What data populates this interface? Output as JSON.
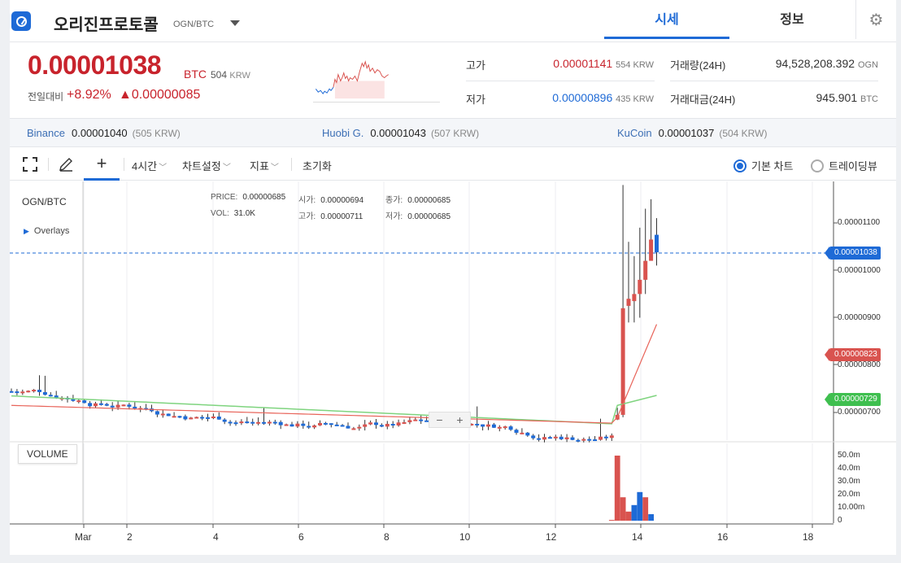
{
  "header": {
    "coin_name": "오리진프로토콜",
    "pair": "OGN/BTC",
    "tabs": [
      {
        "label": "시세"
      },
      {
        "label": "정보"
      }
    ]
  },
  "price": {
    "current": "0.00001038",
    "unit": "BTC",
    "krw": "504",
    "krw_unit": "KRW",
    "change_label": "전일대비",
    "change_pct": "+8.92%",
    "change_abs": "▲0.00000085"
  },
  "stats": {
    "high_label": "고가",
    "high_value": "0.00001141",
    "high_krw": "554 KRW",
    "low_label": "저가",
    "low_value": "0.00000896",
    "low_krw": "435 KRW",
    "volume_label": "거래량(24H)",
    "volume_value": "94,528,208.392",
    "volume_unit": "OGN",
    "amount_label": "거래대금(24H)",
    "amount_value": "945.901",
    "amount_unit": "BTC"
  },
  "exchanges": [
    {
      "name": "Binance",
      "price": "0.00001040",
      "krw": "(505 KRW)"
    },
    {
      "name": "Huobi G.",
      "price": "0.00001043",
      "krw": "(507 KRW)"
    },
    {
      "name": "KuCoin",
      "price": "0.00001037",
      "krw": "(504 KRW)"
    }
  ],
  "toolbar": {
    "interval": "4시간",
    "chart_settings": "차트설정",
    "indicators": "지표",
    "reset": "초기화",
    "basic_chart": "기본 차트",
    "tradingview": "트레이딩뷰"
  },
  "chart": {
    "pair": "OGN/BTC",
    "overlays": "Overlays",
    "ohlc": {
      "price_label": "PRICE:",
      "price": "0.00000685",
      "open_label": "시가:",
      "open": "0.00000694",
      "close_label": "종가:",
      "close": "0.00000685",
      "vol_label": "VOL:",
      "vol": "31.0K",
      "high_label": "고가:",
      "high": "0.00000711",
      "low_label": "저가:",
      "low": "0.00000685"
    },
    "volume_label": "VOLUME",
    "price_ticks": [
      "0.00001100",
      "0.00001000",
      "0.00000900",
      "0.00000800",
      "0.00000700"
    ],
    "volume_ticks": [
      "50.0m",
      "40.0m",
      "30.0m",
      "20.0m",
      "10.00m",
      "0"
    ],
    "x_ticks": [
      "Mar",
      "2",
      "4",
      "6",
      "8",
      "10",
      "12",
      "14",
      "16",
      "18"
    ],
    "tag_current": "0.00001038",
    "tag_ma_red": "0.00000823",
    "tag_ma_green": "0.00000729",
    "zoom_minus": "−",
    "zoom_plus": "+"
  },
  "colors": {
    "up": "#d9534f",
    "down": "#1e6ad6",
    "ma_short": "#e8645a",
    "ma_long": "#7fd47f",
    "accent": "#1e6ad6"
  }
}
